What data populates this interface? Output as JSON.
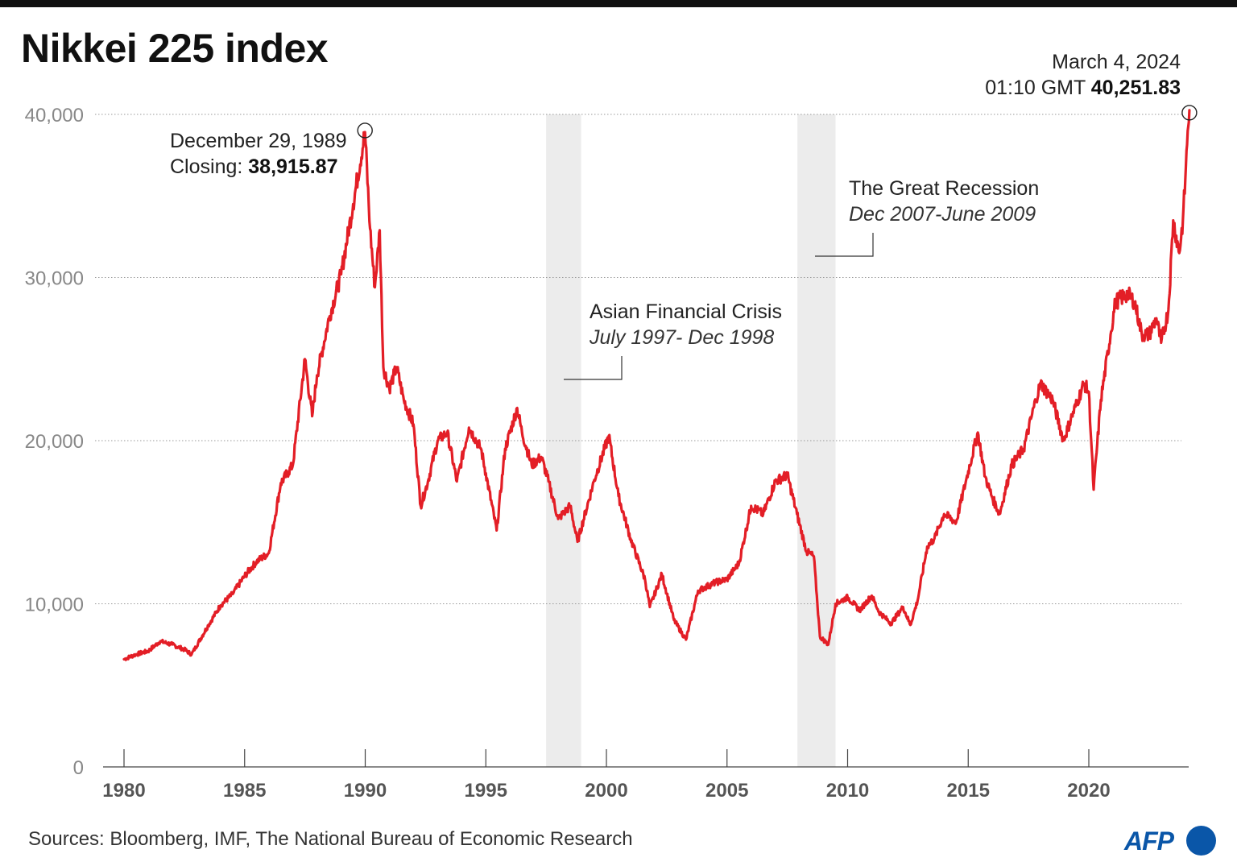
{
  "title": "Nikkei 225 index",
  "source": "Sources: Bloomberg, IMF, The National Bureau of Economic Research",
  "logo": {
    "text": "AFP",
    "color": "#0a56a8"
  },
  "colors": {
    "line": "#e31e26",
    "grid": "#999999",
    "recession": "#ececec",
    "axis": "#444444"
  },
  "annotations": {
    "peak_1989": {
      "date": "December 29, 1989",
      "label": "Closing: ",
      "value": "38,915.87"
    },
    "latest": {
      "date": "March 4, 2024",
      "time": "01:10 GMT ",
      "value": "40,251.83"
    },
    "asian_crisis": {
      "title": "Asian Financial Crisis",
      "period": "July 1997- Dec 1998"
    },
    "great_recession": {
      "title": "The Great Recession",
      "period": "Dec 2007-June 2009"
    }
  },
  "chart_data": {
    "type": "line",
    "title": "Nikkei 225 index",
    "xlabel": "",
    "ylabel": "",
    "xlim": [
      1980,
      2024.17
    ],
    "ylim": [
      0,
      40000
    ],
    "x_ticks": [
      1980,
      1985,
      1990,
      1995,
      2000,
      2005,
      2010,
      2015,
      2020
    ],
    "y_ticks": [
      0,
      10000,
      20000,
      30000,
      40000
    ],
    "y_tick_labels": [
      "0",
      "10,000",
      "20,000",
      "30,000",
      "40,000"
    ],
    "grid": "horizontal dotted",
    "shaded_periods": [
      {
        "name": "Asian Financial Crisis",
        "start": 1997.5,
        "end": 1998.95
      },
      {
        "name": "The Great Recession",
        "start": 2007.92,
        "end": 2009.5
      }
    ],
    "series": [
      {
        "name": "Nikkei 225",
        "x": [
          1980.0,
          1980.5,
          1981.0,
          1981.5,
          1982.0,
          1982.5,
          1982.8,
          1983.5,
          1984.0,
          1984.5,
          1985.0,
          1985.5,
          1986.0,
          1986.5,
          1987.0,
          1987.5,
          1987.8,
          1988.0,
          1988.5,
          1989.0,
          1989.5,
          1989.99,
          1990.2,
          1990.4,
          1990.6,
          1990.75,
          1991.0,
          1991.3,
          1991.6,
          1992.0,
          1992.3,
          1992.6,
          1993.0,
          1993.4,
          1993.8,
          1994.3,
          1994.8,
          1995.0,
          1995.45,
          1995.8,
          1996.3,
          1996.5,
          1996.9,
          1997.3,
          1997.6,
          1998.0,
          1998.5,
          1998.8,
          1999.5,
          2000.1,
          2000.5,
          2001.0,
          2001.6,
          2001.8,
          2002.3,
          2002.8,
          2003.3,
          2003.8,
          2004.5,
          2005.0,
          2005.5,
          2006.0,
          2006.5,
          2007.0,
          2007.5,
          2007.9,
          2008.3,
          2008.6,
          2008.85,
          2009.2,
          2009.5,
          2010.0,
          2010.5,
          2011.0,
          2011.3,
          2011.8,
          2012.3,
          2012.6,
          2012.9,
          2013.3,
          2013.6,
          2014.0,
          2014.5,
          2014.9,
          2015.4,
          2015.7,
          2016.0,
          2016.3,
          2016.8,
          2017.3,
          2017.8,
          2018.0,
          2018.5,
          2018.95,
          2019.3,
          2019.8,
          2020.0,
          2020.2,
          2020.5,
          2020.9,
          2021.1,
          2021.6,
          2021.9,
          2022.2,
          2022.5,
          2022.8,
          2023.0,
          2023.3,
          2023.5,
          2023.75,
          2023.9,
          2024.0,
          2024.1,
          2024.17
        ],
        "values": [
          6600,
          6900,
          7100,
          7700,
          7500,
          7200,
          6900,
          8700,
          9900,
          10600,
          11700,
          12600,
          13100,
          17400,
          18500,
          25000,
          21500,
          24000,
          27500,
          30200,
          34500,
          38915,
          33000,
          29400,
          32900,
          24500,
          23200,
          24500,
          22500,
          21000,
          16000,
          17500,
          20000,
          20500,
          17500,
          20800,
          19500,
          18000,
          14500,
          19500,
          22000,
          20500,
          18500,
          19000,
          17500,
          15200,
          16000,
          13800,
          17600,
          20300,
          16600,
          14000,
          11500,
          9800,
          11800,
          9000,
          7800,
          10800,
          11300,
          11500,
          12500,
          16000,
          15500,
          17500,
          17900,
          15500,
          13200,
          12900,
          8000,
          7500,
          10000,
          10400,
          9600,
          10500,
          9500,
          8800,
          9800,
          8700,
          10200,
          13500,
          14000,
          15500,
          15000,
          17500,
          20500,
          17800,
          16500,
          15500,
          18500,
          19500,
          22500,
          23500,
          22500,
          20000,
          21500,
          23500,
          23000,
          17000,
          22500,
          26500,
          28500,
          29000,
          28500,
          26500,
          26500,
          27500,
          26000,
          28000,
          33500,
          31500,
          33500,
          36000,
          39000,
          40251
        ]
      }
    ]
  }
}
